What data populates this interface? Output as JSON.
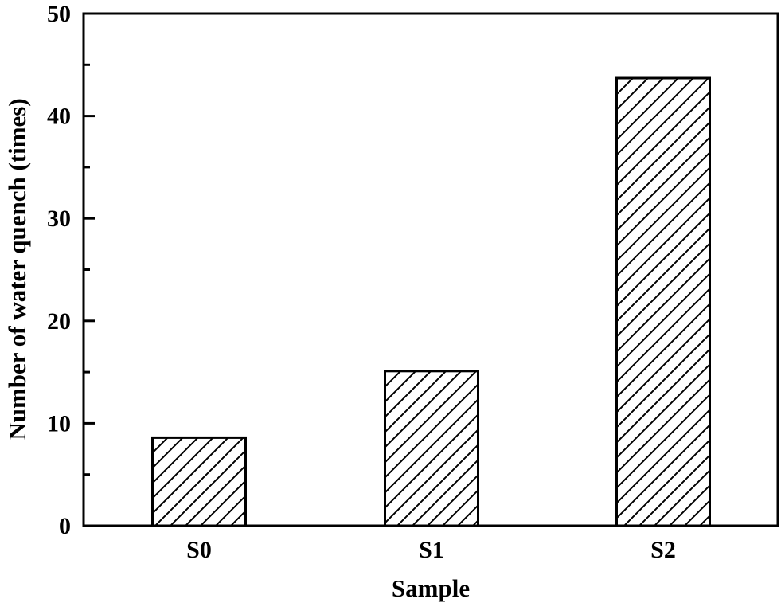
{
  "chart_data": {
    "type": "bar",
    "title": "",
    "xlabel": "Sample",
    "ylabel": "Number of water quench (times)",
    "categories": [
      "S0",
      "S1",
      "S2"
    ],
    "values": [
      8.6,
      15.1,
      43.7
    ],
    "ylim": [
      0,
      50
    ],
    "yticks": [
      0,
      10,
      20,
      30,
      40,
      50
    ],
    "y_minor_ticks": [
      5,
      15,
      25,
      35,
      45
    ],
    "grid": false,
    "legend": null,
    "bar_style": {
      "fill": "#ffffff",
      "hatch": "diagonal-forward",
      "edge_color": "#000000"
    }
  },
  "axes": {
    "x_title": "Sample",
    "y_title": "Number of water quench (times)",
    "y_tick_labels": [
      "0",
      "10",
      "20",
      "30",
      "40",
      "50"
    ],
    "x_tick_labels": [
      "S0",
      "S1",
      "S2"
    ]
  },
  "colors": {
    "axis": "#000000",
    "bar_edge": "#000000",
    "bar_fill": "#ffffff",
    "background": "#ffffff"
  }
}
